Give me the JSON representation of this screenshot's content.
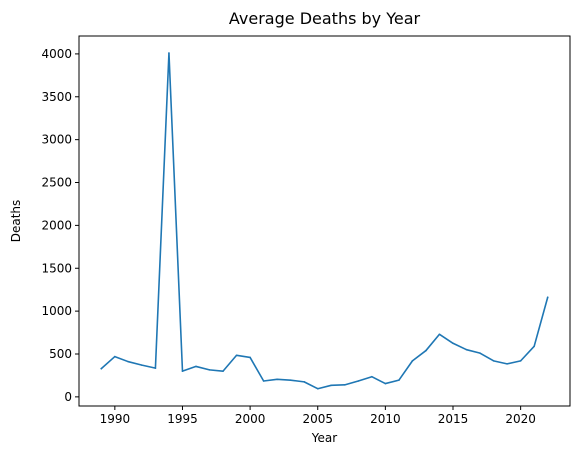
{
  "chart_data": {
    "type": "line",
    "title": "Average Deaths by Year",
    "xlabel": "Year",
    "ylabel": "Deaths",
    "xlim": [
      1987.35,
      2023.65
    ],
    "ylim": [
      -106.5,
      4208.8
    ],
    "x_ticks": [
      1990,
      1995,
      2000,
      2005,
      2010,
      2015,
      2020
    ],
    "y_ticks": [
      0,
      500,
      1000,
      1500,
      2000,
      2500,
      3000,
      3500,
      4000
    ],
    "grid": false,
    "series": [
      {
        "color": "#1f77b4",
        "x": [
          1989,
          1990,
          1991,
          1992,
          1993,
          1994,
          1995,
          1996,
          1997,
          1998,
          1999,
          2000,
          2001,
          2002,
          2003,
          2004,
          2005,
          2006,
          2007,
          2008,
          2009,
          2010,
          2011,
          2012,
          2013,
          2014,
          2015,
          2016,
          2017,
          2018,
          2019,
          2020,
          2021,
          2022
        ],
        "y": [
          330,
          470,
          410,
          370,
          335,
          4010,
          300,
          355,
          315,
          300,
          485,
          460,
          185,
          205,
          195,
          175,
          95,
          135,
          140,
          185,
          235,
          155,
          195,
          420,
          540,
          730,
          625,
          550,
          510,
          420,
          385,
          420,
          590,
          1160
        ]
      }
    ]
  }
}
